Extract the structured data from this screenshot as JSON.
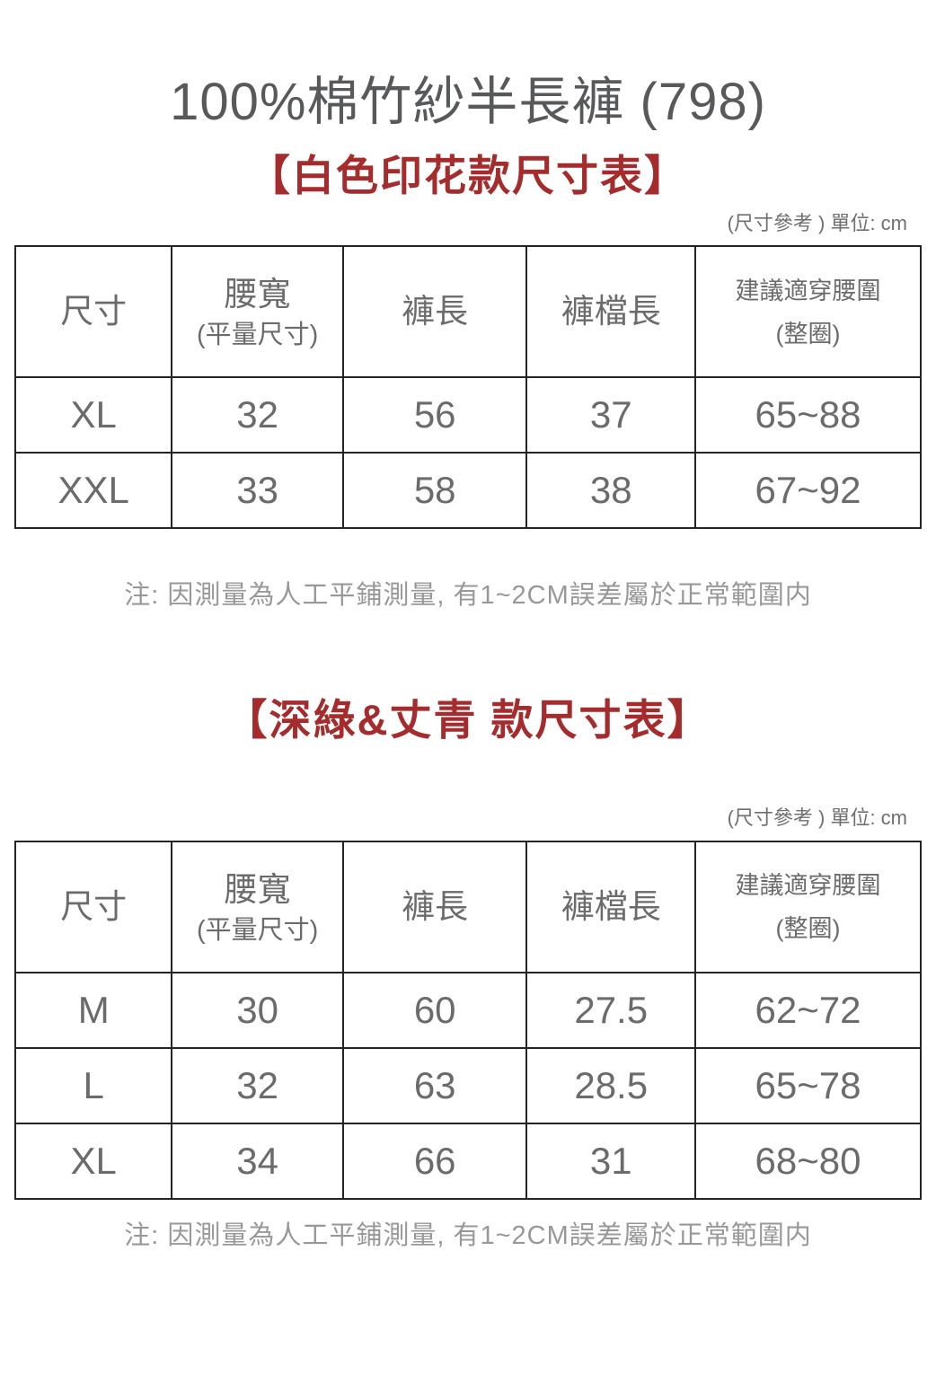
{
  "page": {
    "title": "100%棉竹紗半長褲 (798)"
  },
  "colors": {
    "accent_red": "#a42c2c",
    "table_border": "#242424",
    "title_gray": "#58595b",
    "body_gray": "#6b6b6b",
    "note_gray": "#989898"
  },
  "sections": [
    {
      "heading": "【白色印花款尺寸表】",
      "unit_note": "(尺寸參考 ) 單位: cm",
      "table": {
        "columns": [
          {
            "label": "尺寸",
            "sub": ""
          },
          {
            "label": "腰寬",
            "sub": "(平量尺寸)"
          },
          {
            "label": "褲長",
            "sub": ""
          },
          {
            "label": "褲檔長",
            "sub": ""
          },
          {
            "label": "建議適穿腰圍",
            "sub": "(整圈)"
          }
        ],
        "rows": [
          [
            "XL",
            "32",
            "56",
            "37",
            "65~88"
          ],
          [
            "XXL",
            "33",
            "58",
            "38",
            "67~92"
          ]
        ]
      },
      "note": "注: 因測量為人工平鋪測量, 有1~2CM誤差屬於正常範圍内"
    },
    {
      "heading": "【深綠&丈青 款尺寸表】",
      "unit_note": "(尺寸參考 ) 單位: cm",
      "table": {
        "columns": [
          {
            "label": "尺寸",
            "sub": ""
          },
          {
            "label": "腰寬",
            "sub": "(平量尺寸)"
          },
          {
            "label": "褲長",
            "sub": ""
          },
          {
            "label": "褲檔長",
            "sub": ""
          },
          {
            "label": "建議適穿腰圍",
            "sub": "(整圈)"
          }
        ],
        "rows": [
          [
            "M",
            "30",
            "60",
            "27.5",
            "62~72"
          ],
          [
            "L",
            "32",
            "63",
            "28.5",
            "65~78"
          ],
          [
            "XL",
            "34",
            "66",
            "31",
            "68~80"
          ]
        ]
      },
      "note": "注: 因測量為人工平鋪測量, 有1~2CM誤差屬於正常範圍内"
    }
  ]
}
